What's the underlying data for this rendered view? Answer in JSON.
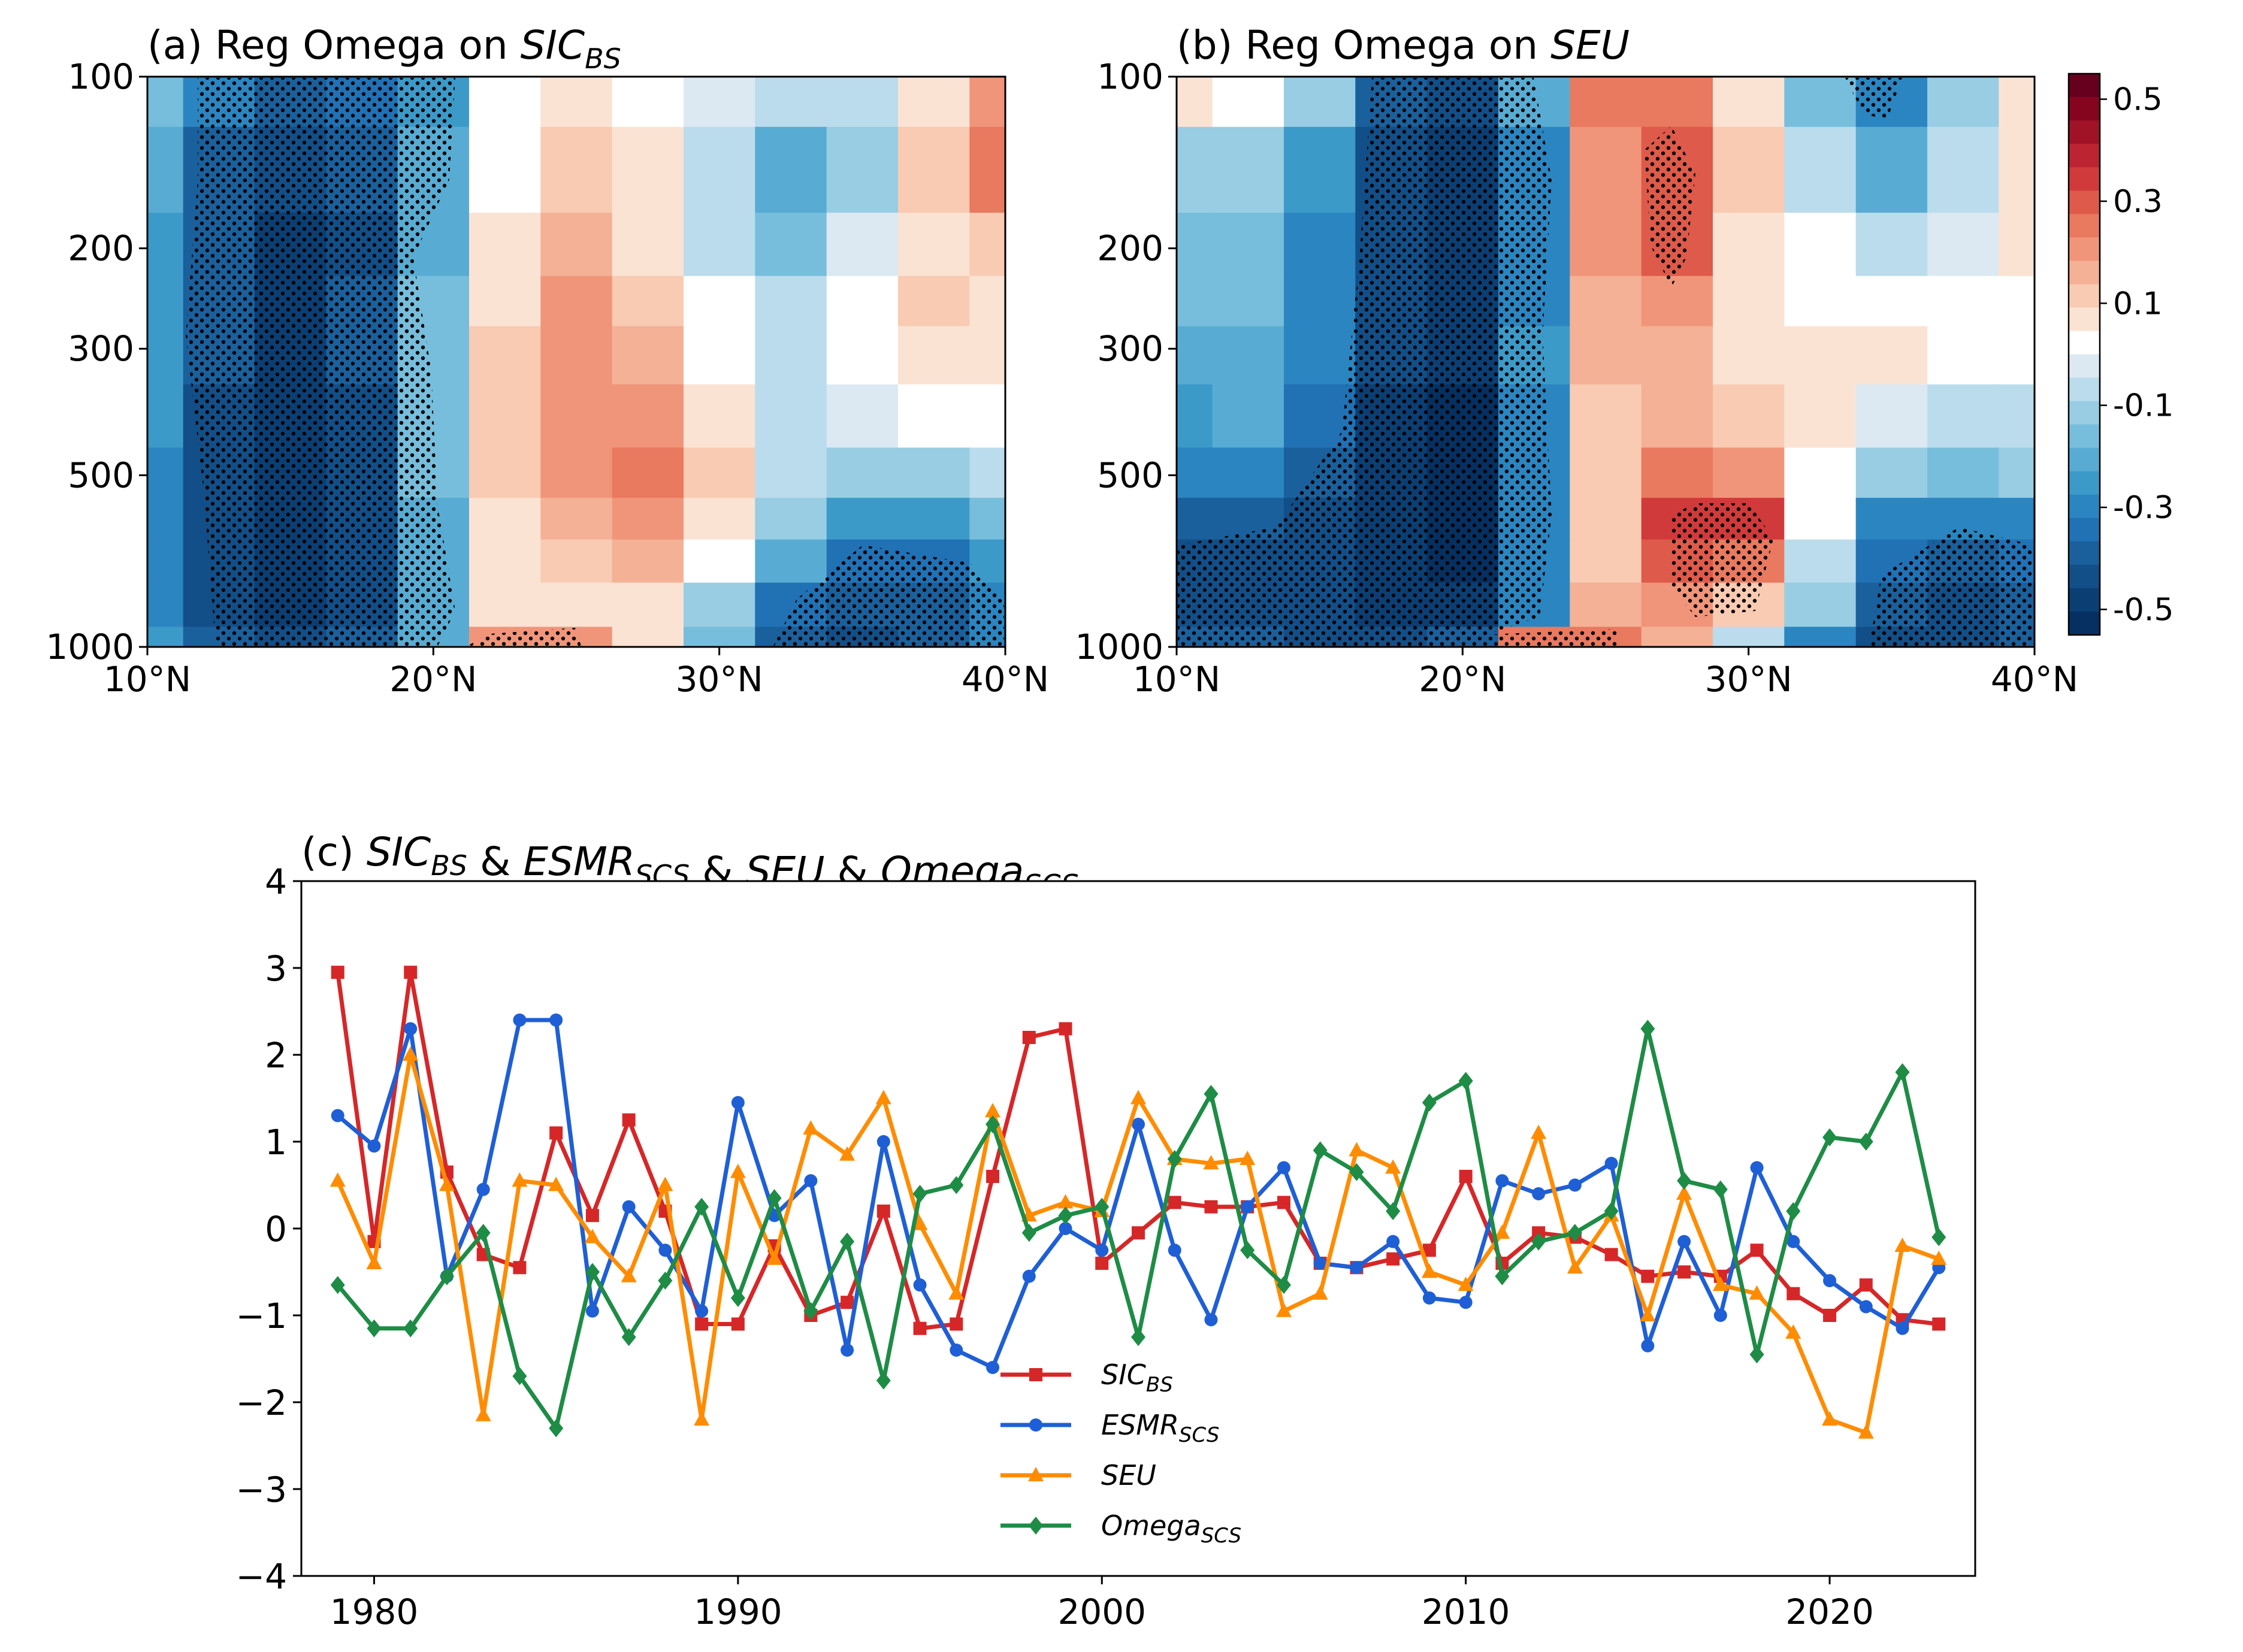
{
  "chart_data": [
    {
      "id": "a",
      "type": "heatmap",
      "title": {
        "prefix": "(a) Reg Omega on ",
        "var": "SIC",
        "sub": "BS"
      },
      "xlabel": "",
      "ylabel": "",
      "x_ticks": [
        "10°N",
        "20°N",
        "30°N",
        "40°N"
      ],
      "x_tick_values": [
        10,
        20,
        30,
        40
      ],
      "y_ticks": [
        "100",
        "200",
        "300",
        "500",
        "1000"
      ],
      "y_tick_values": [
        100,
        200,
        300,
        500,
        1000
      ],
      "xlim": [
        10,
        40
      ],
      "ylim": [
        100,
        1000
      ],
      "lat": [
        10,
        12.5,
        15,
        17.5,
        20,
        22.5,
        25,
        27.5,
        30,
        32.5,
        35,
        37.5,
        40
      ],
      "levels": [
        100,
        150,
        200,
        250,
        300,
        400,
        500,
        600,
        700,
        850,
        1000
      ],
      "values": [
        [
          -0.15,
          -0.32,
          -0.38,
          -0.35,
          -0.25,
          0.02,
          0.05,
          0.02,
          -0.02,
          -0.08,
          -0.08,
          0.05,
          0.22
        ],
        [
          -0.22,
          -0.38,
          -0.44,
          -0.4,
          -0.22,
          0.02,
          0.1,
          0.06,
          -0.06,
          -0.2,
          -0.1,
          0.1,
          0.25
        ],
        [
          -0.25,
          -0.4,
          -0.46,
          -0.42,
          -0.2,
          0.05,
          0.15,
          0.08,
          -0.05,
          -0.16,
          -0.04,
          0.08,
          0.12
        ],
        [
          -0.25,
          -0.4,
          -0.46,
          -0.4,
          -0.18,
          0.08,
          0.2,
          0.12,
          0.0,
          -0.08,
          0.04,
          0.1,
          0.08
        ],
        [
          -0.25,
          -0.4,
          -0.46,
          -0.4,
          -0.16,
          0.1,
          0.2,
          0.15,
          0.02,
          -0.05,
          0.04,
          0.07,
          0.05
        ],
        [
          -0.26,
          -0.42,
          -0.48,
          -0.42,
          -0.16,
          0.12,
          0.2,
          0.22,
          0.05,
          -0.05,
          -0.02,
          0.0,
          0.0
        ],
        [
          -0.28,
          -0.44,
          -0.5,
          -0.44,
          -0.18,
          0.1,
          0.2,
          0.25,
          0.12,
          -0.05,
          -0.1,
          -0.1,
          -0.05
        ],
        [
          -0.3,
          -0.44,
          -0.5,
          -0.44,
          -0.2,
          0.08,
          0.15,
          0.22,
          0.05,
          -0.1,
          -0.25,
          -0.25,
          -0.18
        ],
        [
          -0.3,
          -0.44,
          -0.48,
          -0.42,
          -0.22,
          0.05,
          0.12,
          0.15,
          0.0,
          -0.2,
          -0.35,
          -0.35,
          -0.25
        ],
        [
          -0.28,
          -0.42,
          -0.46,
          -0.42,
          -0.22,
          0.05,
          0.08,
          0.05,
          -0.1,
          -0.35,
          -0.4,
          -0.38,
          -0.3
        ],
        [
          -0.25,
          -0.4,
          -0.45,
          -0.4,
          -0.2,
          0.2,
          0.2,
          0.05,
          -0.15,
          -0.4,
          -0.42,
          -0.4,
          -0.32
        ]
      ]
    },
    {
      "id": "b",
      "type": "heatmap",
      "title": {
        "prefix": "(b) Reg Omega on ",
        "var": "SEU",
        "sub": ""
      },
      "xlabel": "",
      "ylabel": "",
      "x_ticks": [
        "10°N",
        "20°N",
        "30°N",
        "40°N"
      ],
      "x_tick_values": [
        10,
        20,
        30,
        40
      ],
      "y_ticks": [
        "100",
        "200",
        "300",
        "500",
        "1000"
      ],
      "y_tick_values": [
        100,
        200,
        300,
        500,
        1000
      ],
      "xlim": [
        10,
        40
      ],
      "ylim": [
        100,
        1000
      ],
      "lat": [
        10,
        12.5,
        15,
        17.5,
        20,
        22.5,
        25,
        27.5,
        30,
        32.5,
        35,
        37.5,
        40
      ],
      "levels": [
        100,
        150,
        200,
        250,
        300,
        400,
        500,
        600,
        700,
        850,
        1000
      ],
      "values": [
        [
          0.05,
          0.02,
          -0.12,
          -0.38,
          -0.42,
          -0.2,
          0.25,
          0.25,
          0.05,
          -0.15,
          -0.3,
          -0.1,
          0.05
        ],
        [
          -0.12,
          -0.12,
          -0.25,
          -0.44,
          -0.5,
          -0.3,
          0.22,
          0.3,
          0.1,
          -0.05,
          -0.2,
          -0.05,
          0.05
        ],
        [
          -0.15,
          -0.15,
          -0.28,
          -0.44,
          -0.5,
          -0.3,
          0.2,
          0.3,
          0.08,
          0.0,
          -0.08,
          -0.02,
          0.05
        ],
        [
          -0.18,
          -0.18,
          -0.3,
          -0.44,
          -0.5,
          -0.28,
          0.18,
          0.22,
          0.05,
          0.02,
          0.02,
          0.02,
          0.02
        ],
        [
          -0.22,
          -0.2,
          -0.32,
          -0.44,
          -0.5,
          -0.26,
          0.15,
          0.15,
          0.08,
          0.08,
          0.05,
          0.02,
          0.0
        ],
        [
          -0.25,
          -0.22,
          -0.35,
          -0.46,
          -0.52,
          -0.28,
          0.12,
          0.18,
          0.12,
          0.05,
          -0.02,
          -0.05,
          -0.05
        ],
        [
          -0.3,
          -0.3,
          -0.38,
          -0.46,
          -0.52,
          -0.3,
          0.1,
          0.25,
          0.22,
          0.02,
          -0.12,
          -0.15,
          -0.12
        ],
        [
          -0.4,
          -0.4,
          -0.42,
          -0.48,
          -0.52,
          -0.32,
          0.1,
          0.35,
          0.35,
          0.0,
          -0.28,
          -0.32,
          -0.28
        ],
        [
          -0.42,
          -0.42,
          -0.44,
          -0.48,
          -0.52,
          -0.32,
          0.12,
          0.3,
          0.25,
          -0.05,
          -0.35,
          -0.4,
          -0.35
        ],
        [
          -0.42,
          -0.42,
          -0.44,
          -0.46,
          -0.48,
          -0.3,
          0.15,
          0.22,
          0.1,
          -0.12,
          -0.4,
          -0.42,
          -0.38
        ],
        [
          -0.4,
          -0.4,
          -0.42,
          -0.44,
          -0.4,
          0.25,
          0.25,
          0.15,
          -0.05,
          -0.3,
          -0.42,
          -0.42,
          -0.38
        ]
      ]
    },
    {
      "id": "c",
      "type": "line",
      "title": {
        "parts": [
          {
            "t": "(c) ",
            "i": false
          },
          {
            "t": "SIC",
            "i": true,
            "sub": "BS"
          },
          {
            "t": " & ",
            "i": false
          },
          {
            "t": "ESMR",
            "i": true,
            "sub": "SCS"
          },
          {
            "t": " & ",
            "i": false
          },
          {
            "t": "SEU",
            "i": true
          },
          {
            "t": " & ",
            "i": false
          },
          {
            "t": "Omega",
            "i": true,
            "sub": "SCS"
          }
        ]
      },
      "xlabel": "",
      "ylabel": "",
      "xlim": [
        1978,
        2024
      ],
      "ylim": [
        -4,
        4
      ],
      "x_ticks": [
        "1980",
        "1990",
        "2000",
        "2010",
        "2020"
      ],
      "x_tick_values": [
        1980,
        1990,
        2000,
        2010,
        2020
      ],
      "y_ticks": [
        "4",
        "3",
        "2",
        "1",
        "0",
        "−1",
        "−2",
        "−3",
        "−4"
      ],
      "y_tick_values": [
        4,
        3,
        2,
        1,
        0,
        -1,
        -2,
        -3,
        -4
      ],
      "legend_position": "lower-center",
      "x": [
        1979,
        1980,
        1981,
        1982,
        1983,
        1984,
        1985,
        1986,
        1987,
        1988,
        1989,
        1990,
        1991,
        1992,
        1993,
        1994,
        1995,
        1996,
        1997,
        1998,
        1999,
        2000,
        2001,
        2002,
        2003,
        2004,
        2005,
        2006,
        2007,
        2008,
        2009,
        2010,
        2011,
        2012,
        2013,
        2014,
        2015,
        2016,
        2017,
        2018,
        2019,
        2020,
        2021,
        2022,
        2023
      ],
      "series": [
        {
          "name": "SIC",
          "sub": "BS",
          "color": "#d62728",
          "marker": "square",
          "values": [
            2.95,
            -0.15,
            2.95,
            0.65,
            -0.3,
            -0.45,
            1.1,
            0.15,
            1.25,
            0.2,
            -1.1,
            -1.1,
            -0.2,
            -1.0,
            -0.85,
            0.2,
            -1.15,
            -1.1,
            0.6,
            2.2,
            2.3,
            -0.4,
            -0.05,
            0.3,
            0.25,
            0.25,
            0.3,
            -0.4,
            -0.45,
            -0.35,
            -0.25,
            0.6,
            -0.4,
            -0.05,
            -0.1,
            -0.3,
            -0.55,
            -0.5,
            -0.55,
            -0.25,
            -0.75,
            -1.0,
            -0.65,
            -1.05,
            -1.1
          ]
        },
        {
          "name": "ESMR",
          "sub": "SCS",
          "color": "#1f5fd6",
          "marker": "circle",
          "values": [
            1.3,
            0.95,
            2.3,
            -0.55,
            0.45,
            2.4,
            2.4,
            -0.95,
            0.25,
            -0.25,
            -0.95,
            1.45,
            0.15,
            0.55,
            -1.4,
            1.0,
            -0.65,
            -1.4,
            -1.6,
            -0.55,
            0.0,
            -0.25,
            1.2,
            -0.25,
            -1.05,
            0.25,
            0.7,
            -0.4,
            -0.45,
            -0.15,
            -0.8,
            -0.85,
            0.55,
            0.4,
            0.5,
            0.75,
            -1.35,
            -0.15,
            -1.0,
            0.7,
            -0.15,
            -0.6,
            -0.9,
            -1.15,
            -0.45
          ]
        },
        {
          "name": "SEU",
          "sub": "",
          "color": "#ff8c00",
          "marker": "triangle",
          "values": [
            0.55,
            -0.4,
            2.0,
            0.5,
            -2.15,
            0.55,
            0.5,
            -0.1,
            -0.55,
            0.5,
            -2.2,
            0.65,
            -0.35,
            1.15,
            0.85,
            1.5,
            0.05,
            -0.75,
            1.35,
            0.15,
            0.3,
            0.2,
            1.5,
            0.8,
            0.75,
            0.8,
            -0.95,
            -0.75,
            0.9,
            0.7,
            -0.5,
            -0.65,
            -0.05,
            1.1,
            -0.45,
            0.15,
            -1.0,
            0.4,
            -0.65,
            -0.75,
            -1.2,
            -2.2,
            -2.35,
            -0.2,
            -0.35
          ]
        },
        {
          "name": "Omega",
          "sub": "SCS",
          "color": "#1e8c45",
          "marker": "diamond",
          "values": [
            -0.65,
            -1.15,
            -1.15,
            -0.55,
            -0.05,
            -1.7,
            -2.3,
            -0.5,
            -1.25,
            -0.6,
            0.25,
            -0.8,
            0.35,
            -0.95,
            -0.15,
            -1.75,
            0.4,
            0.5,
            1.2,
            -0.05,
            0.15,
            0.25,
            -1.25,
            0.8,
            1.55,
            -0.25,
            -0.65,
            0.9,
            0.65,
            0.2,
            1.45,
            1.7,
            -0.55,
            -0.15,
            -0.05,
            0.2,
            2.3,
            0.55,
            0.45,
            -1.45,
            0.2,
            1.05,
            1.0,
            1.8,
            -0.1
          ]
        }
      ]
    }
  ],
  "colorbar": {
    "tick_labels": [
      "0.5",
      "0.3",
      "0.1",
      "-0.1",
      "-0.3",
      "-0.5"
    ],
    "tick_values": [
      0.5,
      0.3,
      0.1,
      -0.1,
      -0.3,
      -0.5
    ],
    "range": [
      -0.55,
      0.55
    ],
    "colors": [
      "#053061",
      "#0b3f74",
      "#124f88",
      "#1a609c",
      "#2171b5",
      "#2b85c0",
      "#3c9ac9",
      "#58acd3",
      "#77bedc",
      "#98cde4",
      "#bbdcec",
      "#dce9f2",
      "#ffffff",
      "#fbe3d4",
      "#f8cbb2",
      "#f4b196",
      "#f0957a",
      "#e9795f",
      "#de5a4a",
      "#d03a3a",
      "#bb2430",
      "#a01226",
      "#85051f",
      "#67001f"
    ]
  }
}
